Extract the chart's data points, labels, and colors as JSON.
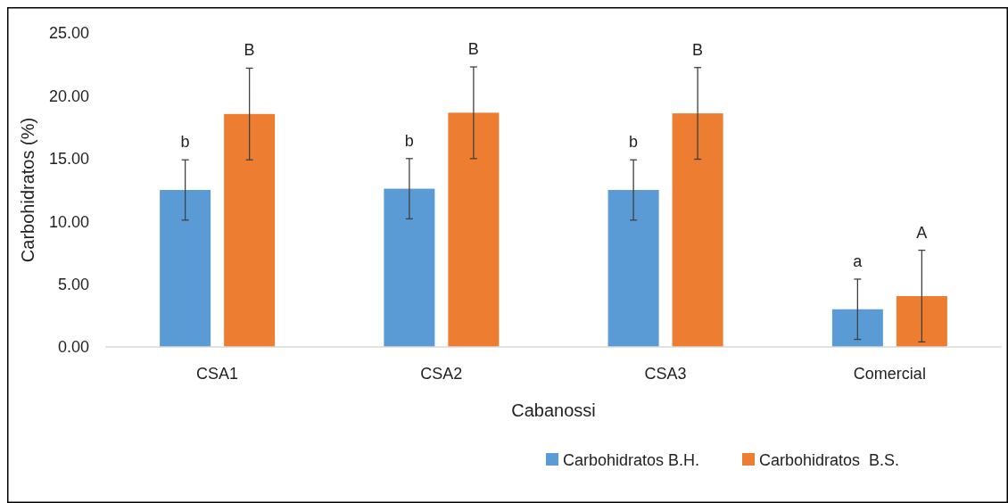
{
  "chart_data": {
    "type": "bar",
    "xlabel": "Cabanossi",
    "ylabel": "Carbohidratos (%)",
    "categories": [
      "CSA1",
      "CSA2",
      "CSA3",
      "Comercial"
    ],
    "series": [
      {
        "name": "Carbohidratos B.H.",
        "color": "#5b9bd5",
        "values": [
          12.5,
          12.6,
          12.5,
          3.0
        ],
        "errors": [
          2.4,
          2.4,
          2.4,
          2.4
        ]
      },
      {
        "name": "Carbohidratos  B.S.",
        "color": "#ed7d31",
        "values": [
          18.55,
          18.65,
          18.6,
          4.05
        ],
        "errors": [
          3.65,
          3.65,
          3.65,
          3.65
        ]
      }
    ],
    "ylim": [
      0,
      25
    ],
    "yticks": [
      {
        "value": 0,
        "label": "0.00"
      },
      {
        "value": 5,
        "label": "5.00"
      },
      {
        "value": 10,
        "label": "10.00"
      },
      {
        "value": 15,
        "label": "15.00"
      },
      {
        "value": 20,
        "label": "20.00"
      },
      {
        "value": 25,
        "label": "25.00"
      }
    ],
    "annotations": [
      "b",
      "B",
      "b",
      "B",
      "b",
      "B",
      "a",
      "A"
    ],
    "legend": "bottom"
  }
}
